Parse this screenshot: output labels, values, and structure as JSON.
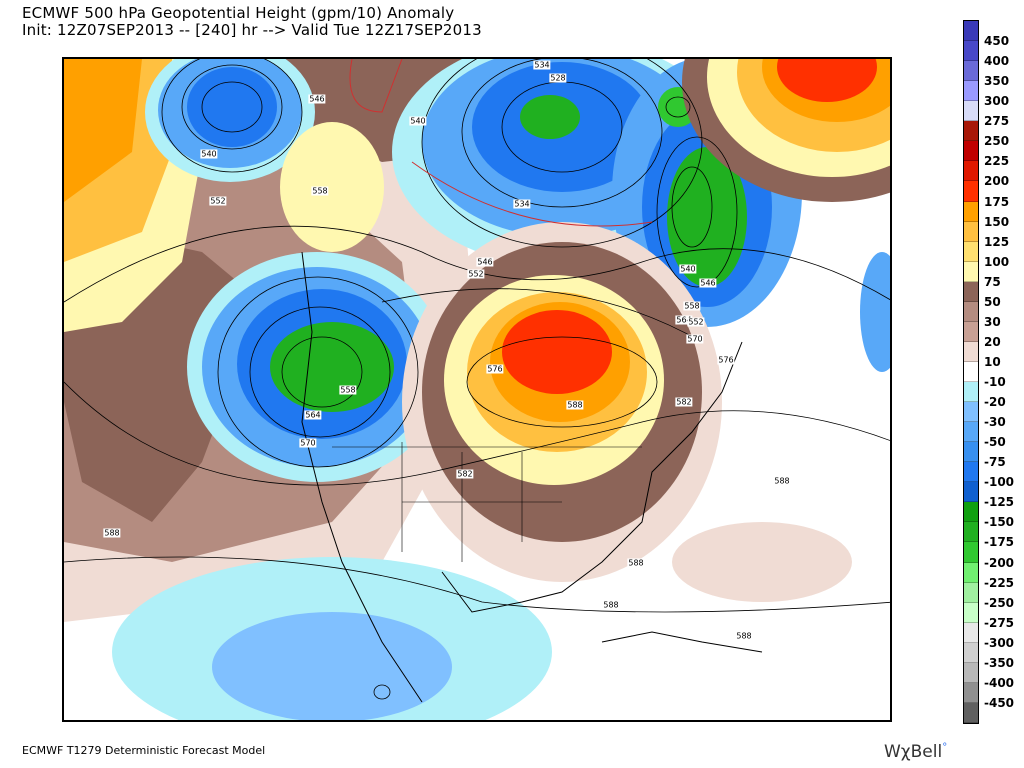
{
  "header": {
    "title": "ECMWF 500 hPa Geopotential Height (gpm/10) Anomaly",
    "subtitle": "Init: 12Z07SEP2013 -- [240] hr --> Valid Tue 12Z17SEP2013"
  },
  "footer": {
    "model": "ECMWF T1279 Deterministic Forecast Model",
    "brand": "WχBell",
    "brand_mark": "°"
  },
  "legend": {
    "labels": [
      "450",
      "400",
      "350",
      "300",
      "275",
      "250",
      "225",
      "200",
      "175",
      "150",
      "125",
      "100",
      "75",
      "50",
      "30",
      "20",
      "10",
      "-10",
      "-20",
      "-30",
      "-50",
      "-75",
      "-100",
      "-125",
      "-150",
      "-175",
      "-200",
      "-225",
      "-250",
      "-275",
      "-300",
      "-350",
      "-400",
      "-450"
    ],
    "colors": [
      "#3a3ab8",
      "#4848c8",
      "#6a6ad8",
      "#9a9aff",
      "#d8dcf8",
      "#a81808",
      "#c00000",
      "#e01800",
      "#ff3000",
      "#ffa000",
      "#ffc040",
      "#ffe070",
      "#fff8b0",
      "#8c6458",
      "#b48c80",
      "#c8a094",
      "#f0dcd4",
      "#ffffff",
      "#b0f0f8",
      "#80c0ff",
      "#58a8f8",
      "#3890f0",
      "#2078f0",
      "#1060d0",
      "#10a010",
      "#20b020",
      "#30c830",
      "#70f070",
      "#a0f0a0",
      "#c8ffc8",
      "#e8e8e8",
      "#d0d0d0",
      "#b8b8b8",
      "#909090",
      "#606060"
    ]
  },
  "map": {
    "contour_labels": [
      "546",
      "540",
      "552",
      "558",
      "540",
      "534",
      "528",
      "534",
      "546",
      "552",
      "540",
      "546",
      "558",
      "564",
      "552",
      "570",
      "576",
      "576",
      "558",
      "564",
      "570",
      "588",
      "582",
      "582",
      "588",
      "588",
      "588",
      "588",
      "588"
    ]
  }
}
